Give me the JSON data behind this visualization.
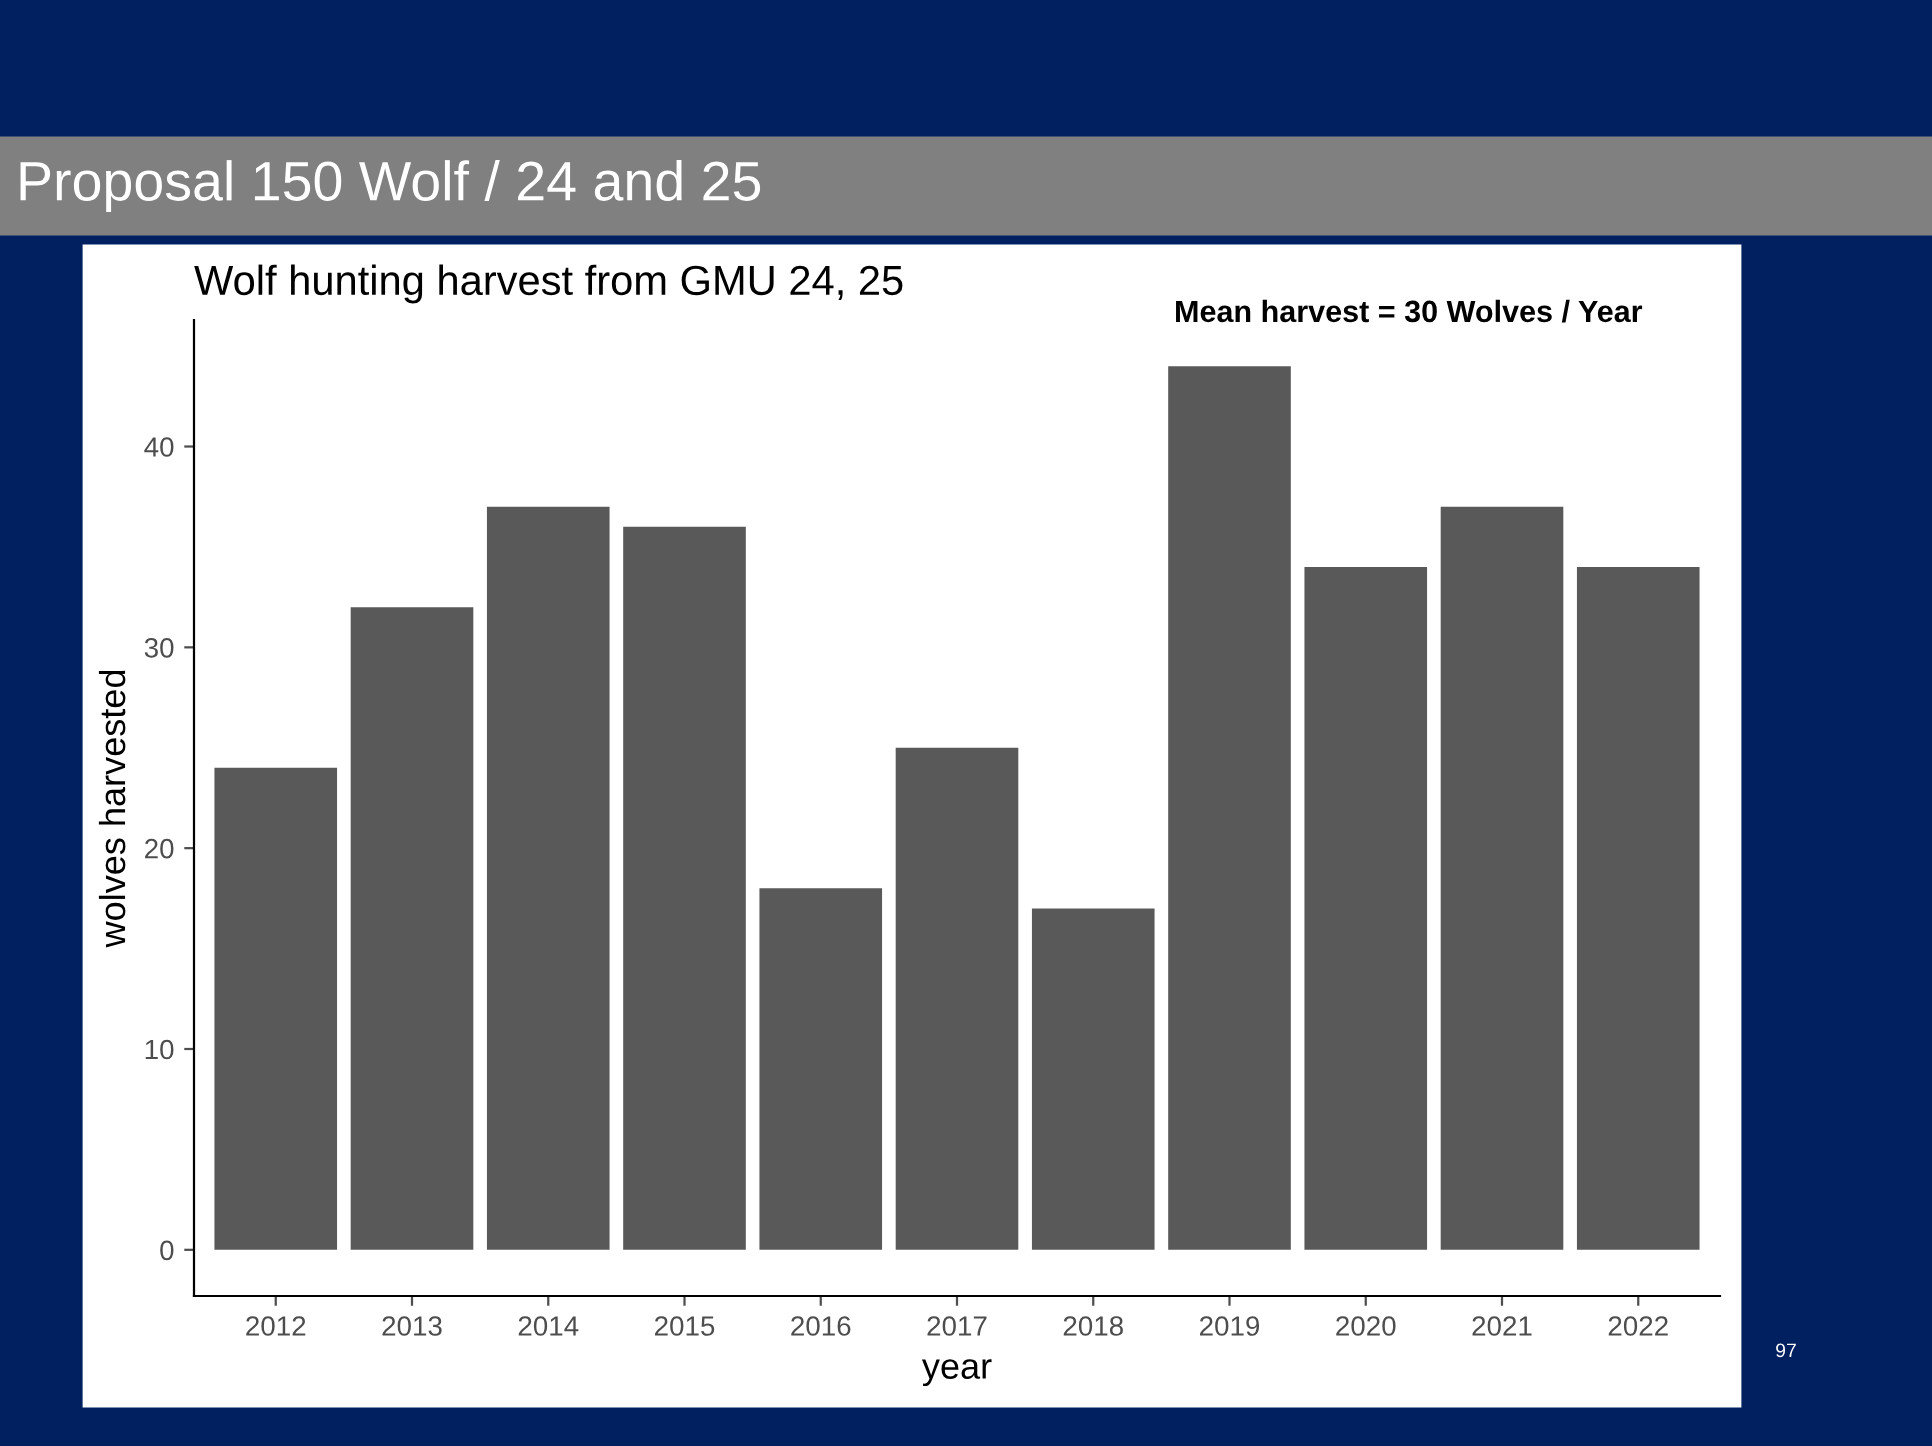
{
  "chart_data": {
    "type": "bar",
    "title": "Proposal 150 Wolf / 24 and 25",
    "subtitle": "Wolf hunting harvest from GMU 24, 25",
    "xlabel": "year",
    "ylabel": "wolves harvested",
    "categories": [
      "2012",
      "2013",
      "2014",
      "2015",
      "2016",
      "2017",
      "2018",
      "2019",
      "2020",
      "2021",
      "2022"
    ],
    "values": [
      24,
      32,
      37,
      36,
      18,
      25,
      17,
      44,
      34,
      37,
      34
    ],
    "color": "#595959",
    "ylim": [
      -2.3,
      46.3
    ],
    "yticks": [
      0,
      10,
      20,
      30,
      40
    ],
    "grid": false,
    "legend": false,
    "annotations": [
      "Mean harvest = 30 Wolves / Year",
      "97"
    ]
  }
}
